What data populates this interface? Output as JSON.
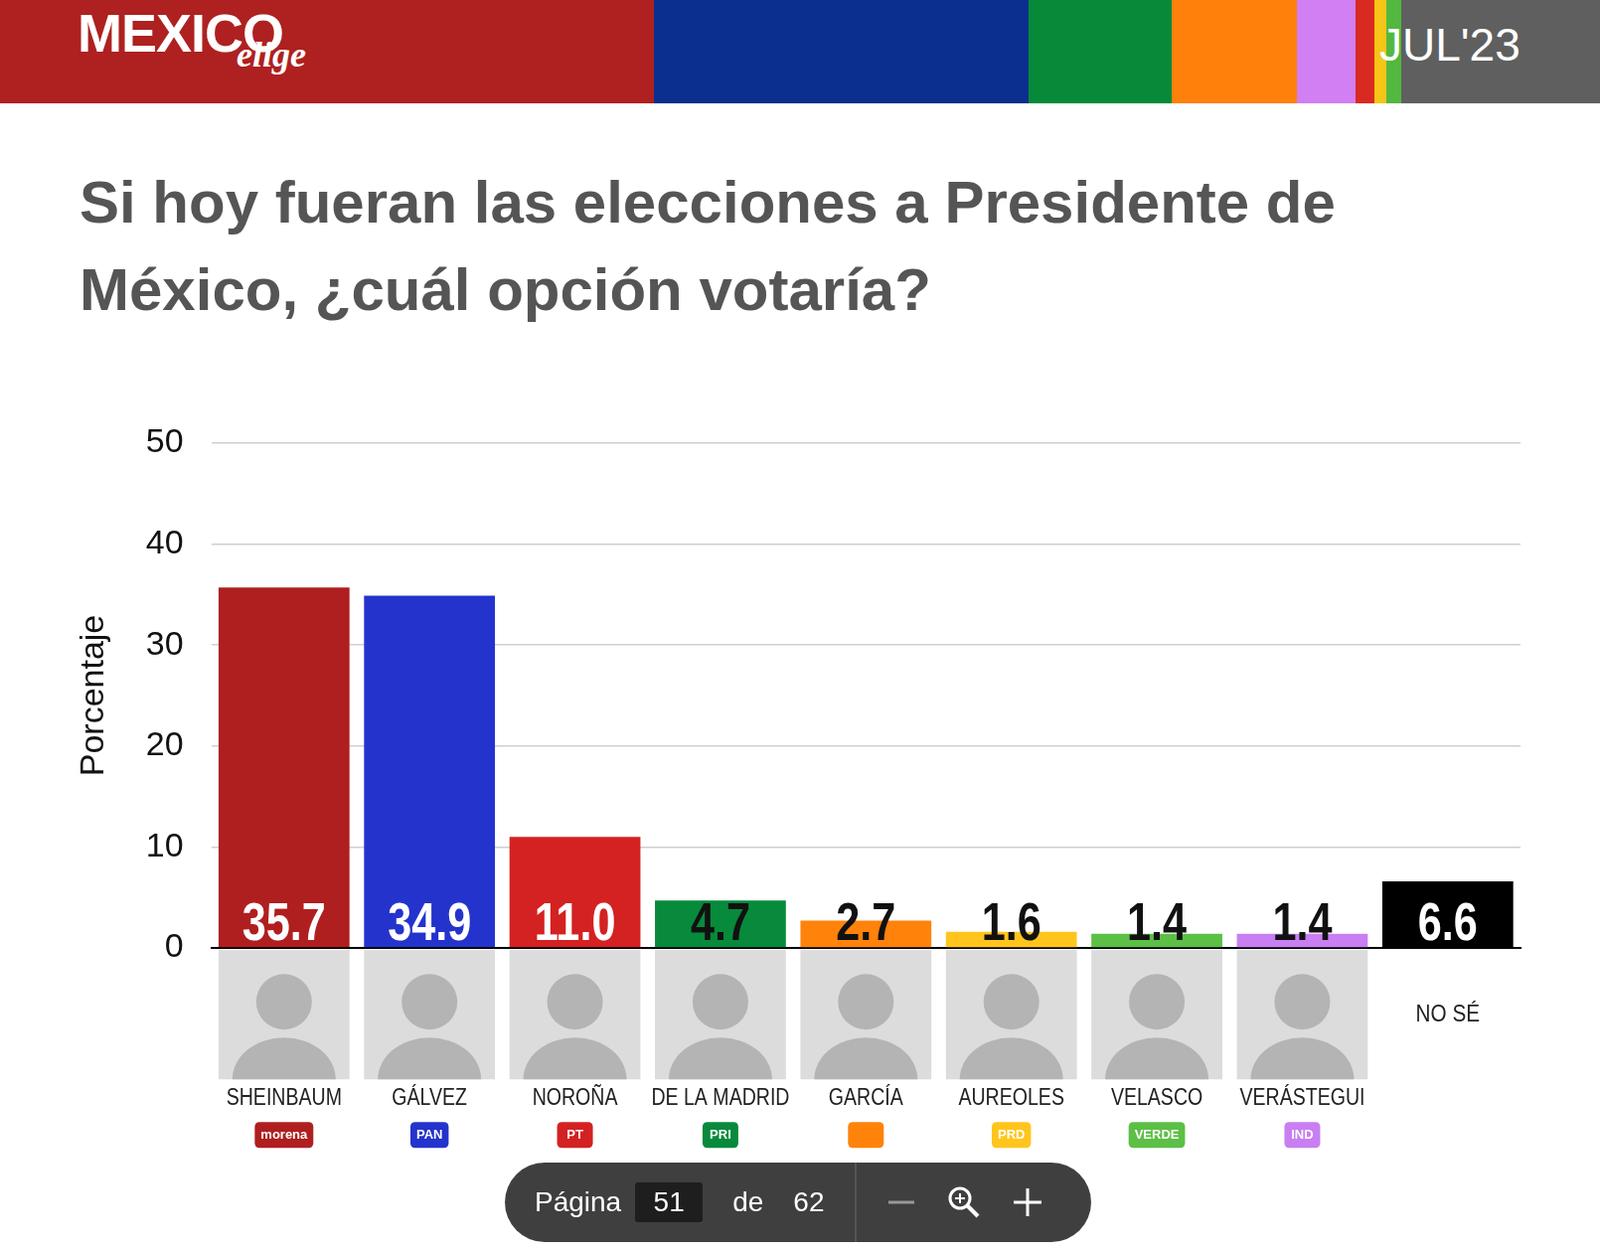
{
  "header": {
    "logo": "MEXICO",
    "logo_script": "elige",
    "date": "JUL'23"
  },
  "chart_data": {
    "type": "bar",
    "title": "Si hoy fueran las elecciones a Presidente de México, ¿cuál opción votaría?",
    "y_label": "Porcentaje",
    "categories": [
      "SHEINBAUM",
      "GÁLVEZ",
      "NOROÑA",
      "DE LA MADRID",
      "GARCÍA",
      "AUREOLES",
      "VELASCO",
      "VERÁSTEGUI",
      "NO SÉ"
    ],
    "values": [
      35.7,
      34.9,
      11.0,
      4.7,
      2.7,
      1.6,
      1.4,
      1.4,
      6.6
    ],
    "value_labels": [
      "35.7",
      "34.9",
      "11.0",
      "4.7",
      "2.7",
      "1.6",
      "1.4",
      "1.4",
      "6.6"
    ],
    "colors": [
      "#b01f1f",
      "#2433cc",
      "#d42121",
      "#078a3b",
      "#ff820a",
      "#ffc51c",
      "#5cbf46",
      "#c97ef2",
      "#000000"
    ],
    "parties": [
      "morena",
      "PAN",
      "PT",
      "PRI",
      null,
      "PRD",
      "VERDE",
      "IND",
      null
    ],
    "ylim": [
      0,
      50
    ],
    "yticks": [
      0,
      10,
      20,
      30,
      40,
      50
    ],
    "grid": true,
    "data_labels": true
  },
  "viewer": {
    "page_label": "Página",
    "page": 51,
    "of_label": "de",
    "pages": 62
  }
}
